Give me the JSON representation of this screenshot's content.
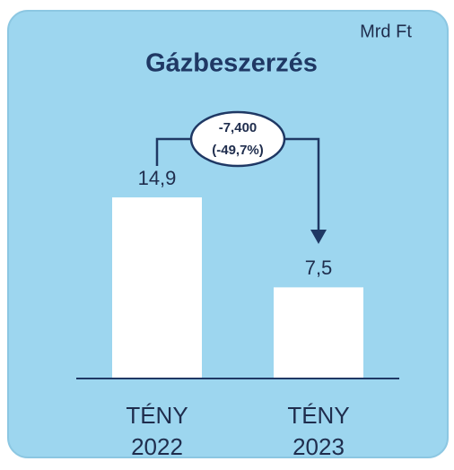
{
  "chart_data": {
    "type": "bar",
    "title": "Gázbeszerzés",
    "subtitle": "Mrd Ft",
    "categories": [
      "TÉNY 2022",
      "TÉNY 2023"
    ],
    "values": [
      14.9,
      7.5
    ],
    "value_labels": [
      "14,9",
      "7,5"
    ],
    "color": "#ffffff",
    "ylim": [
      0,
      20
    ],
    "annotations": [
      "-7,400",
      "(-49,7%)"
    ]
  }
}
